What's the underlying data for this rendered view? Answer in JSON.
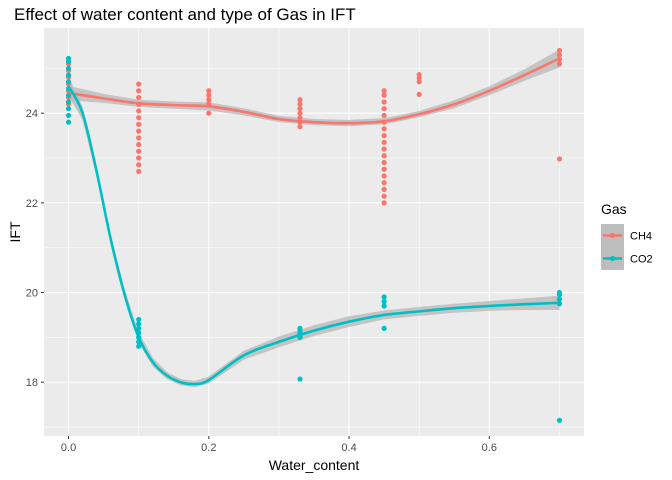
{
  "chart_data": {
    "type": "scatter",
    "title": "Effect of water content and type of Gas in IFT",
    "xlabel": "Water_content",
    "ylabel": "IFT",
    "xlim": [
      -0.035,
      0.735
    ],
    "ylim": [
      16.8,
      25.9
    ],
    "x_ticks": [
      0.0,
      0.2,
      0.4,
      0.6
    ],
    "x_tick_labels": [
      "0.0",
      "0.2",
      "0.4",
      "0.6"
    ],
    "x_minor_ticks": [
      0.1,
      0.3,
      0.5,
      0.7
    ],
    "y_ticks": [
      18,
      20,
      22,
      24
    ],
    "y_tick_labels": [
      "18",
      "20",
      "22",
      "24"
    ],
    "y_minor_ticks": [
      17,
      19,
      21,
      23,
      25
    ],
    "panel_background": "#ebebeb",
    "grid_color": "#ffffff",
    "band_color": "#bdbdbd",
    "legend": {
      "title": "Gas",
      "position": "right"
    },
    "series": [
      {
        "name": "CH4",
        "color": "#f8766d",
        "points": [
          [
            0.0,
            24.2
          ],
          [
            0.0,
            24.35
          ],
          [
            0.0,
            24.5
          ],
          [
            0.0,
            24.65
          ],
          [
            0.0,
            24.8
          ],
          [
            0.0,
            24.95
          ],
          [
            0.0,
            25.1
          ],
          [
            0.1,
            22.7
          ],
          [
            0.1,
            22.85
          ],
          [
            0.1,
            23.0
          ],
          [
            0.1,
            23.15
          ],
          [
            0.1,
            23.3
          ],
          [
            0.1,
            23.45
          ],
          [
            0.1,
            23.6
          ],
          [
            0.1,
            23.75
          ],
          [
            0.1,
            23.9
          ],
          [
            0.1,
            24.05
          ],
          [
            0.1,
            24.2
          ],
          [
            0.1,
            24.35
          ],
          [
            0.1,
            24.5
          ],
          [
            0.1,
            24.65
          ],
          [
            0.2,
            24.0
          ],
          [
            0.2,
            24.2
          ],
          [
            0.2,
            24.3
          ],
          [
            0.2,
            24.4
          ],
          [
            0.2,
            24.5
          ],
          [
            0.33,
            23.7
          ],
          [
            0.33,
            23.8
          ],
          [
            0.33,
            23.9
          ],
          [
            0.33,
            24.0
          ],
          [
            0.33,
            24.1
          ],
          [
            0.33,
            24.2
          ],
          [
            0.33,
            24.3
          ],
          [
            0.45,
            22.0
          ],
          [
            0.45,
            22.15
          ],
          [
            0.45,
            22.3
          ],
          [
            0.45,
            22.45
          ],
          [
            0.45,
            22.6
          ],
          [
            0.45,
            22.75
          ],
          [
            0.45,
            22.9
          ],
          [
            0.45,
            23.05
          ],
          [
            0.45,
            23.2
          ],
          [
            0.45,
            23.35
          ],
          [
            0.45,
            23.5
          ],
          [
            0.45,
            23.65
          ],
          [
            0.45,
            23.8
          ],
          [
            0.45,
            23.95
          ],
          [
            0.45,
            24.1
          ],
          [
            0.45,
            24.25
          ],
          [
            0.45,
            24.4
          ],
          [
            0.45,
            24.5
          ],
          [
            0.5,
            24.42
          ],
          [
            0.5,
            24.7
          ],
          [
            0.5,
            24.78
          ],
          [
            0.5,
            24.86
          ],
          [
            0.7,
            22.98
          ],
          [
            0.7,
            25.1
          ],
          [
            0.7,
            25.2
          ],
          [
            0.7,
            25.3
          ],
          [
            0.7,
            25.4
          ]
        ],
        "smooth": [
          [
            0.0,
            24.45
          ],
          [
            0.05,
            24.33
          ],
          [
            0.1,
            24.22
          ],
          [
            0.15,
            24.18
          ],
          [
            0.2,
            24.15
          ],
          [
            0.25,
            24.03
          ],
          [
            0.3,
            23.87
          ],
          [
            0.35,
            23.8
          ],
          [
            0.4,
            23.78
          ],
          [
            0.45,
            23.82
          ],
          [
            0.5,
            23.98
          ],
          [
            0.55,
            24.2
          ],
          [
            0.6,
            24.5
          ],
          [
            0.65,
            24.85
          ],
          [
            0.7,
            25.22
          ]
        ],
        "band_halfwidth": [
          0.16,
          0.1,
          0.08,
          0.08,
          0.09,
          0.08,
          0.07,
          0.07,
          0.07,
          0.07,
          0.07,
          0.09,
          0.1,
          0.13,
          0.2
        ]
      },
      {
        "name": "CO2",
        "color": "#00bfc4",
        "points": [
          [
            0.0,
            23.8
          ],
          [
            0.0,
            23.95
          ],
          [
            0.0,
            24.1
          ],
          [
            0.0,
            24.25
          ],
          [
            0.0,
            24.4
          ],
          [
            0.0,
            24.55
          ],
          [
            0.0,
            24.7
          ],
          [
            0.0,
            24.85
          ],
          [
            0.0,
            25.0
          ],
          [
            0.0,
            25.15
          ],
          [
            0.0,
            25.22
          ],
          [
            0.1,
            18.8
          ],
          [
            0.1,
            18.9
          ],
          [
            0.1,
            19.0
          ],
          [
            0.1,
            19.1
          ],
          [
            0.1,
            19.2
          ],
          [
            0.1,
            19.3
          ],
          [
            0.1,
            19.4
          ],
          [
            0.33,
            18.07
          ],
          [
            0.33,
            19.0
          ],
          [
            0.33,
            19.05
          ],
          [
            0.33,
            19.1
          ],
          [
            0.33,
            19.15
          ],
          [
            0.33,
            19.2
          ],
          [
            0.45,
            19.2
          ],
          [
            0.45,
            19.7
          ],
          [
            0.45,
            19.8
          ],
          [
            0.45,
            19.9
          ],
          [
            0.7,
            17.15
          ],
          [
            0.7,
            19.75
          ],
          [
            0.7,
            19.85
          ],
          [
            0.7,
            19.95
          ],
          [
            0.7,
            20.0
          ]
        ],
        "smooth": [
          [
            0.0,
            24.6
          ],
          [
            0.02,
            24.0
          ],
          [
            0.04,
            22.7
          ],
          [
            0.06,
            21.2
          ],
          [
            0.08,
            19.95
          ],
          [
            0.1,
            19.0
          ],
          [
            0.12,
            18.45
          ],
          [
            0.14,
            18.15
          ],
          [
            0.16,
            18.0
          ],
          [
            0.18,
            17.96
          ],
          [
            0.2,
            18.05
          ],
          [
            0.25,
            18.6
          ],
          [
            0.3,
            18.9
          ],
          [
            0.35,
            19.15
          ],
          [
            0.4,
            19.35
          ],
          [
            0.45,
            19.5
          ],
          [
            0.5,
            19.58
          ],
          [
            0.55,
            19.65
          ],
          [
            0.6,
            19.7
          ],
          [
            0.65,
            19.74
          ],
          [
            0.7,
            19.77
          ]
        ],
        "band_halfwidth": [
          0.22,
          0.15,
          0.12,
          0.12,
          0.12,
          0.12,
          0.1,
          0.08,
          0.07,
          0.07,
          0.08,
          0.1,
          0.12,
          0.12,
          0.12,
          0.1,
          0.1,
          0.1,
          0.11,
          0.13,
          0.16
        ]
      }
    ]
  }
}
